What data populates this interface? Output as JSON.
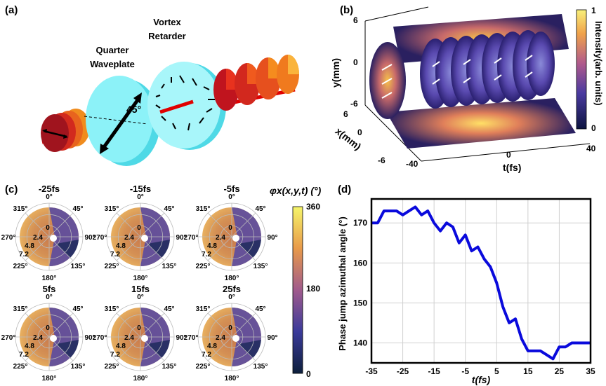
{
  "panels": {
    "a": {
      "label": "(a)",
      "quarter_waveplate": [
        "Quarter",
        "Waveplate"
      ],
      "vortex_retarder": [
        "Vortex",
        "Retarder"
      ],
      "angle_label": "45°"
    },
    "b": {
      "label": "(b)",
      "y_axis": {
        "label": "y(mm)",
        "ticks": [
          "6",
          "0",
          "-6"
        ]
      },
      "x_axis": {
        "label": "x(mm)",
        "ticks": [
          "6",
          "0",
          "-6"
        ]
      },
      "t_axis": {
        "label": "t(fs)",
        "ticks": [
          "-40",
          "0",
          "40"
        ]
      },
      "colorbar": {
        "label": "Intensity(arb. units)",
        "ticks": [
          "1",
          "0"
        ]
      }
    },
    "c": {
      "label": "(c)",
      "colorbar": {
        "label": "φx(x,y,t) (°)",
        "ticks": [
          "360",
          "180",
          "0"
        ]
      },
      "angle_ticks": [
        "0°",
        "45°",
        "90°",
        "135°",
        "180°",
        "225°",
        "270°",
        "315°"
      ],
      "radial_ticks": [
        "0",
        "2.4",
        "4.8",
        "7.2"
      ],
      "frames": [
        "-25fs",
        "-15fs",
        "-5fs",
        "5fs",
        "15fs",
        "25fs"
      ]
    },
    "d": {
      "label": "(d)"
    }
  },
  "chart_data": {
    "type": "line",
    "title": "",
    "xlabel": "t(fs)",
    "ylabel": "Phase jump azimuthal angle (°)",
    "xlim": [
      -35,
      35
    ],
    "ylim": [
      135,
      176
    ],
    "xticks": [
      -35,
      -25,
      -15,
      -5,
      5,
      15,
      25,
      35
    ],
    "yticks": [
      140,
      150,
      160,
      170
    ],
    "grid": true,
    "series": [
      {
        "name": "phase jump",
        "color": "#0a0adc",
        "x": [
          -35,
          -33,
          -31,
          -29,
          -27,
          -25,
          -23,
          -21,
          -19,
          -17,
          -15,
          -13,
          -11,
          -9,
          -7,
          -5,
          -3,
          -1,
          1,
          3,
          5,
          7,
          9,
          11,
          13,
          15,
          17,
          19,
          21,
          23,
          25,
          27,
          29,
          31,
          33,
          35
        ],
        "y": [
          170,
          170,
          173,
          173,
          173,
          172,
          173,
          174,
          172,
          173,
          170,
          168,
          170,
          169,
          165,
          167,
          163,
          164,
          161,
          159,
          155,
          149,
          145,
          146,
          141,
          138,
          138,
          138,
          137,
          136,
          139,
          139,
          140,
          140,
          140,
          140
        ]
      }
    ]
  }
}
